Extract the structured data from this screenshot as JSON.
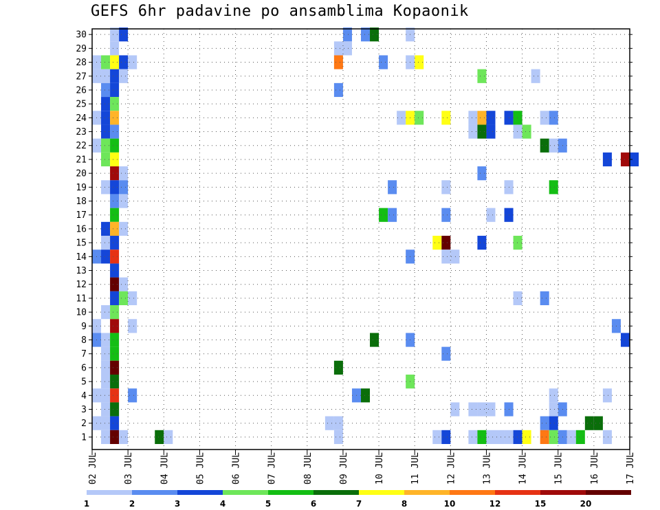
{
  "title": "GEFS 6hr padavine po ansamblima Kopaonik",
  "chart_data": {
    "type": "heatmap",
    "title": "GEFS 6hr padavine po ansamblima Kopaonik",
    "xlabel": "",
    "ylabel": "",
    "x_ticks": [
      "02 JUL",
      "03 JUL",
      "04 JUL",
      "05 JUL",
      "06 JUL",
      "07 JUL",
      "08 JUL",
      "09 JUL",
      "10 JUL",
      "11 JUL",
      "12 JUL",
      "13 JUL",
      "14 JUL",
      "15 JUL",
      "16 JUL",
      "17 JUL"
    ],
    "y_ticks": [
      "1",
      "2",
      "3",
      "4",
      "5",
      "6",
      "7",
      "8",
      "9",
      "10",
      "11",
      "12",
      "13",
      "14",
      "15",
      "16",
      "17",
      "18",
      "19",
      "20",
      "21",
      "22",
      "23",
      "24",
      "25",
      "26",
      "27",
      "28",
      "29",
      "30"
    ],
    "time_step_hours": 6,
    "members": 30,
    "grid": true,
    "colorbar": {
      "labels": [
        "1",
        "2",
        "3",
        "4",
        "5",
        "6",
        "7",
        "8",
        "10",
        "12",
        "15",
        "20"
      ],
      "colors": [
        "#b4c8f8",
        "#5a8cf0",
        "#1446d8",
        "#6ee65a",
        "#14be14",
        "#0a6e0a",
        "#ffff14",
        "#ffb428",
        "#ff7814",
        "#e63214",
        "#a00a0a",
        "#640000"
      ]
    },
    "cells": [
      [
        2,
        30,
        0
      ],
      [
        3,
        30,
        2
      ],
      [
        2,
        29,
        0
      ],
      [
        0,
        28,
        0
      ],
      [
        1,
        28,
        3
      ],
      [
        2,
        28,
        6
      ],
      [
        3,
        28,
        2
      ],
      [
        4,
        28,
        0
      ],
      [
        0,
        27,
        0
      ],
      [
        1,
        27,
        0
      ],
      [
        2,
        27,
        2
      ],
      [
        3,
        27,
        0
      ],
      [
        1,
        26,
        1
      ],
      [
        2,
        26,
        2
      ],
      [
        1,
        25,
        2
      ],
      [
        2,
        25,
        3
      ],
      [
        0,
        24,
        0
      ],
      [
        1,
        24,
        2
      ],
      [
        2,
        24,
        7
      ],
      [
        1,
        23,
        2
      ],
      [
        2,
        23,
        1
      ],
      [
        0,
        22,
        0
      ],
      [
        1,
        22,
        3
      ],
      [
        2,
        22,
        4
      ],
      [
        1,
        21,
        3
      ],
      [
        2,
        21,
        6
      ],
      [
        2,
        20,
        10
      ],
      [
        3,
        20,
        0
      ],
      [
        1,
        19,
        0
      ],
      [
        2,
        19,
        2
      ],
      [
        3,
        19,
        1
      ],
      [
        2,
        18,
        1
      ],
      [
        3,
        18,
        0
      ],
      [
        2,
        17,
        4
      ],
      [
        1,
        16,
        2
      ],
      [
        2,
        16,
        7
      ],
      [
        3,
        16,
        0
      ],
      [
        1,
        15,
        0
      ],
      [
        2,
        15,
        2
      ],
      [
        0,
        14,
        1
      ],
      [
        1,
        14,
        2
      ],
      [
        2,
        14,
        9
      ],
      [
        2,
        13,
        2
      ],
      [
        2,
        12,
        11
      ],
      [
        3,
        12,
        0
      ],
      [
        2,
        11,
        2
      ],
      [
        3,
        11,
        3
      ],
      [
        4,
        11,
        0
      ],
      [
        1,
        10,
        0
      ],
      [
        2,
        10,
        3
      ],
      [
        0,
        9,
        0
      ],
      [
        2,
        9,
        10
      ],
      [
        4,
        9,
        0
      ],
      [
        0,
        8,
        1
      ],
      [
        1,
        8,
        0
      ],
      [
        2,
        8,
        4
      ],
      [
        1,
        7,
        0
      ],
      [
        2,
        7,
        4
      ],
      [
        1,
        6,
        0
      ],
      [
        2,
        6,
        11
      ],
      [
        1,
        5,
        0
      ],
      [
        2,
        5,
        5
      ],
      [
        0,
        4,
        0
      ],
      [
        1,
        4,
        0
      ],
      [
        2,
        4,
        9
      ],
      [
        4,
        4,
        1
      ],
      [
        1,
        3,
        0
      ],
      [
        2,
        3,
        5
      ],
      [
        0,
        2,
        0
      ],
      [
        1,
        2,
        0
      ],
      [
        2,
        2,
        2
      ],
      [
        1,
        1,
        0
      ],
      [
        2,
        1,
        11
      ],
      [
        3,
        1,
        0
      ],
      [
        7,
        1,
        5
      ],
      [
        8,
        1,
        0
      ],
      [
        28,
        30,
        1
      ],
      [
        30,
        30,
        1
      ],
      [
        31,
        30,
        5
      ],
      [
        35,
        30,
        0
      ],
      [
        27,
        29,
        0
      ],
      [
        28,
        29,
        0
      ],
      [
        27,
        28,
        8
      ],
      [
        32,
        28,
        1
      ],
      [
        35,
        28,
        0
      ],
      [
        36,
        28,
        6
      ],
      [
        43,
        27,
        3
      ],
      [
        49,
        27,
        0
      ],
      [
        27,
        26,
        1
      ],
      [
        34,
        24,
        0
      ],
      [
        35,
        24,
        6
      ],
      [
        36,
        24,
        3
      ],
      [
        39,
        24,
        6
      ],
      [
        42,
        24,
        0
      ],
      [
        43,
        24,
        7
      ],
      [
        44,
        24,
        2
      ],
      [
        46,
        24,
        2
      ],
      [
        47,
        24,
        4
      ],
      [
        50,
        24,
        0
      ],
      [
        51,
        24,
        1
      ],
      [
        42,
        23,
        0
      ],
      [
        43,
        23,
        5
      ],
      [
        44,
        23,
        2
      ],
      [
        47,
        23,
        0
      ],
      [
        48,
        23,
        3
      ],
      [
        50,
        22,
        5
      ],
      [
        51,
        22,
        0
      ],
      [
        52,
        22,
        1
      ],
      [
        57,
        21,
        2
      ],
      [
        59,
        21,
        10
      ],
      [
        60,
        21,
        2
      ],
      [
        43,
        20,
        1
      ],
      [
        33,
        19,
        1
      ],
      [
        39,
        19,
        0
      ],
      [
        46,
        19,
        0
      ],
      [
        51,
        19,
        4
      ],
      [
        32,
        17,
        4
      ],
      [
        33,
        17,
        1
      ],
      [
        39,
        17,
        1
      ],
      [
        44,
        17,
        0
      ],
      [
        46,
        17,
        2
      ],
      [
        38,
        15,
        6
      ],
      [
        39,
        15,
        11
      ],
      [
        43,
        15,
        2
      ],
      [
        47,
        15,
        3
      ],
      [
        35,
        14,
        1
      ],
      [
        39,
        14,
        0
      ],
      [
        40,
        14,
        0
      ],
      [
        47,
        11,
        0
      ],
      [
        50,
        11,
        1
      ],
      [
        58,
        9,
        1
      ],
      [
        31,
        8,
        5
      ],
      [
        35,
        8,
        1
      ],
      [
        59,
        8,
        2
      ],
      [
        39,
        7,
        1
      ],
      [
        27,
        6,
        5
      ],
      [
        35,
        5,
        3
      ],
      [
        29,
        4,
        1
      ],
      [
        30,
        4,
        5
      ],
      [
        51,
        4,
        0
      ],
      [
        57,
        4,
        0
      ],
      [
        40,
        3,
        0
      ],
      [
        42,
        3,
        0
      ],
      [
        43,
        3,
        0
      ],
      [
        44,
        3,
        0
      ],
      [
        46,
        3,
        1
      ],
      [
        51,
        3,
        0
      ],
      [
        52,
        3,
        1
      ],
      [
        26,
        2,
        0
      ],
      [
        27,
        2,
        0
      ],
      [
        50,
        2,
        1
      ],
      [
        51,
        2,
        2
      ],
      [
        55,
        2,
        5
      ],
      [
        56,
        2,
        5
      ],
      [
        27,
        1,
        0
      ],
      [
        38,
        1,
        0
      ],
      [
        39,
        1,
        2
      ],
      [
        42,
        1,
        0
      ],
      [
        43,
        1,
        4
      ],
      [
        44,
        1,
        0
      ],
      [
        45,
        1,
        0
      ],
      [
        46,
        1,
        0
      ],
      [
        47,
        1,
        2
      ],
      [
        48,
        1,
        6
      ],
      [
        50,
        1,
        8
      ],
      [
        51,
        1,
        3
      ],
      [
        52,
        1,
        1
      ],
      [
        53,
        1,
        0
      ],
      [
        54,
        1,
        4
      ],
      [
        57,
        1,
        0
      ]
    ],
    "cells_encoding": "[time_step_index_from_02_JUL_00UTC, ensemble_member, colorbar_class_index]"
  }
}
